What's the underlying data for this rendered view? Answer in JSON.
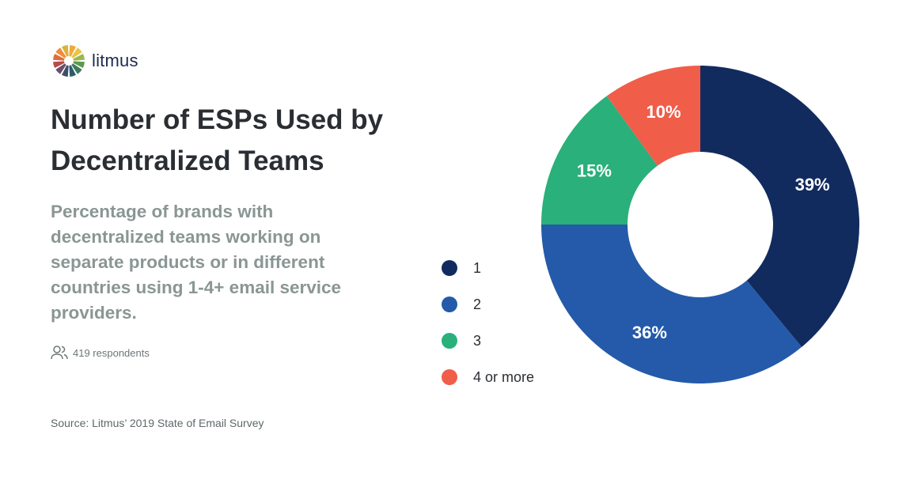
{
  "brand": {
    "name": "litmus",
    "logo_colors": [
      "#f2a93b",
      "#e8c547",
      "#9bb84d",
      "#5c9a4f",
      "#3d7b5c",
      "#2c5d6e",
      "#3e4f6a",
      "#6b4f6e",
      "#b84a4a",
      "#e26b3d",
      "#f08c3a",
      "#d9b43a"
    ]
  },
  "header": {
    "title": "Number of ESPs Used by Decentralized Teams",
    "subtitle": "Percentage of brands with decentralized teams working on separate products or in different countries using 1-4+ email service providers."
  },
  "respondents": {
    "icon": "users-icon",
    "text": "419 respondents"
  },
  "source": "Source: Litmus’ 2019 State of Email Survey",
  "chart_data": {
    "type": "pie",
    "donut": true,
    "categories": [
      "1",
      "2",
      "3",
      "4 or more"
    ],
    "values": [
      39,
      36,
      15,
      10
    ],
    "labels": [
      "39%",
      "36%",
      "15%",
      "10%"
    ],
    "colors": [
      "#122b5f",
      "#245aa9",
      "#2ab07a",
      "#f05d49"
    ],
    "legend_position": "left"
  }
}
